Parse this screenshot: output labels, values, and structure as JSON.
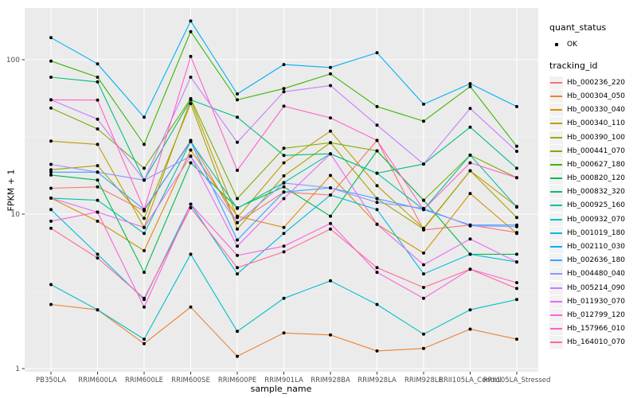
{
  "chart_data": {
    "type": "line",
    "title": "",
    "xlabel": "sample_name",
    "ylabel": "FPKM + 1",
    "y_scale": "log10",
    "ylim": [
      1,
      215
    ],
    "y_ticks": [
      1,
      10,
      100
    ],
    "y_tick_labels": [
      "1",
      "10",
      "100"
    ],
    "y_minor_ticks": [
      3.1623,
      31.623
    ],
    "grid": true,
    "panel_bg": "#EBEBEB",
    "grid_color": "#FFFFFF",
    "point_color": "#000000",
    "categories": [
      "PB350LA",
      "RRIM600LA",
      "RRIM600LE",
      "RRIM600SE",
      "RRIM600PE",
      "RRIM901LA",
      "RRIM928BA",
      "RRIM928LA",
      "RRIM928LE",
      "RRII105LA_Control",
      "RRII105LA_Stressed"
    ],
    "legend": {
      "position": "right",
      "quant_status_title": "quant_status",
      "ok_label": "OK",
      "tracking_title": "tracking_id"
    },
    "series": [
      {
        "name": "Hb_000236_220",
        "color": "#F8766D",
        "values": [
          14.7,
          15,
          10.5,
          30,
          8.8,
          13.9,
          13.3,
          30,
          7.9,
          8.5,
          7.6
        ]
      },
      {
        "name": "Hb_000304_050",
        "color": "#EA8331",
        "values": [
          2.6,
          2.4,
          1.45,
          2.5,
          1.2,
          1.7,
          1.65,
          1.3,
          1.35,
          1.8,
          1.55
        ]
      },
      {
        "name": "Hb_000330_040",
        "color": "#D89000",
        "values": [
          12.7,
          9,
          5.8,
          26,
          9.7,
          8.2,
          17.8,
          8.6,
          5.6,
          13.6,
          7.5
        ]
      },
      {
        "name": "Hb_000340_110",
        "color": "#C09B00",
        "values": [
          29.7,
          28.3,
          8.2,
          55,
          9.5,
          21.5,
          34.5,
          15.3,
          8.1,
          19.1,
          11.2
        ]
      },
      {
        "name": "Hb_000390_100",
        "color": "#A3A500",
        "values": [
          19.4,
          20.6,
          9.4,
          52,
          8,
          17.7,
          29,
          12.6,
          8,
          19.1,
          9.5
        ]
      },
      {
        "name": "Hb_000441_070",
        "color": "#7CAE00",
        "values": [
          48.6,
          35.6,
          19.8,
          56,
          12.6,
          26.7,
          29,
          25.7,
          12.3,
          24.1,
          17.2
        ]
      },
      {
        "name": "Hb_000627_180",
        "color": "#39B600",
        "values": [
          98,
          77,
          28.3,
          152,
          55,
          65,
          81,
          49.7,
          40,
          67,
          27.5
        ]
      },
      {
        "name": "Hb_000820_120",
        "color": "#00BB4E",
        "values": [
          17.9,
          16.6,
          4.2,
          21.5,
          11,
          15,
          9.7,
          25.7,
          12.3,
          5.5,
          5.5
        ]
      },
      {
        "name": "Hb_000832_320",
        "color": "#00BF7D",
        "values": [
          77,
          71.8,
          16.6,
          55,
          42.4,
          24,
          24.6,
          18.4,
          21.1,
          36.6,
          19.8
        ]
      },
      {
        "name": "Hb_000925_160",
        "color": "#00C1A3",
        "values": [
          12.7,
          12.3,
          7.5,
          29.5,
          10.9,
          16,
          24.6,
          18.4,
          10.7,
          24.1,
          11.1
        ]
      },
      {
        "name": "Hb_000932_070",
        "color": "#00BFC4",
        "values": [
          3.5,
          2.4,
          1.55,
          5.5,
          1.74,
          2.85,
          3.7,
          2.6,
          1.67,
          2.4,
          2.8
        ]
      },
      {
        "name": "Hb_001019_180",
        "color": "#00BAE0",
        "values": [
          10.7,
          5.5,
          2.8,
          11.6,
          4.1,
          7.5,
          13.3,
          10.7,
          4.1,
          5.5,
          4.9
        ]
      },
      {
        "name": "Hb_002110_030",
        "color": "#00B0F6",
        "values": [
          139,
          94,
          42.4,
          178,
          60,
          93,
          89,
          111,
          51.5,
          70,
          49.7
        ]
      },
      {
        "name": "Hb_002636_180",
        "color": "#35A2FF",
        "values": [
          18.7,
          18.7,
          10.7,
          29.5,
          6.8,
          13.9,
          14.8,
          12.6,
          10.7,
          8.5,
          8.5
        ]
      },
      {
        "name": "Hb_004480_040",
        "color": "#9590FF",
        "values": [
          21,
          18.7,
          16.6,
          23.7,
          8.8,
          15.9,
          14.8,
          11.9,
          10.9,
          8.4,
          8.3
        ]
      },
      {
        "name": "Hb_005214_090",
        "color": "#C77CFF",
        "values": [
          55,
          41.2,
          16.6,
          77,
          29.2,
          62,
          68,
          37.7,
          21.1,
          48.3,
          25.5
        ]
      },
      {
        "name": "Hb_011930_070",
        "color": "#E76BF3",
        "values": [
          12.7,
          10.3,
          8.2,
          23.7,
          6.2,
          12.6,
          24.6,
          8.6,
          4.7,
          6.9,
          4.9
        ]
      },
      {
        "name": "Hb_012799_120",
        "color": "#FA62DB",
        "values": [
          9,
          10.3,
          2.5,
          11.6,
          5.4,
          6.2,
          8.7,
          4.2,
          2.85,
          4.4,
          3.6
        ]
      },
      {
        "name": "Hb_157966_010",
        "color": "#FF61CC",
        "values": [
          55,
          54.8,
          10.7,
          105,
          19.2,
          50,
          42,
          30,
          10.7,
          21.5,
          17.2
        ]
      },
      {
        "name": "Hb_164010_070",
        "color": "#FF6A98",
        "values": [
          8.1,
          5.2,
          2.85,
          11,
          4.5,
          5.7,
          8,
          4.5,
          3.35,
          4.4,
          3.3
        ]
      }
    ]
  }
}
